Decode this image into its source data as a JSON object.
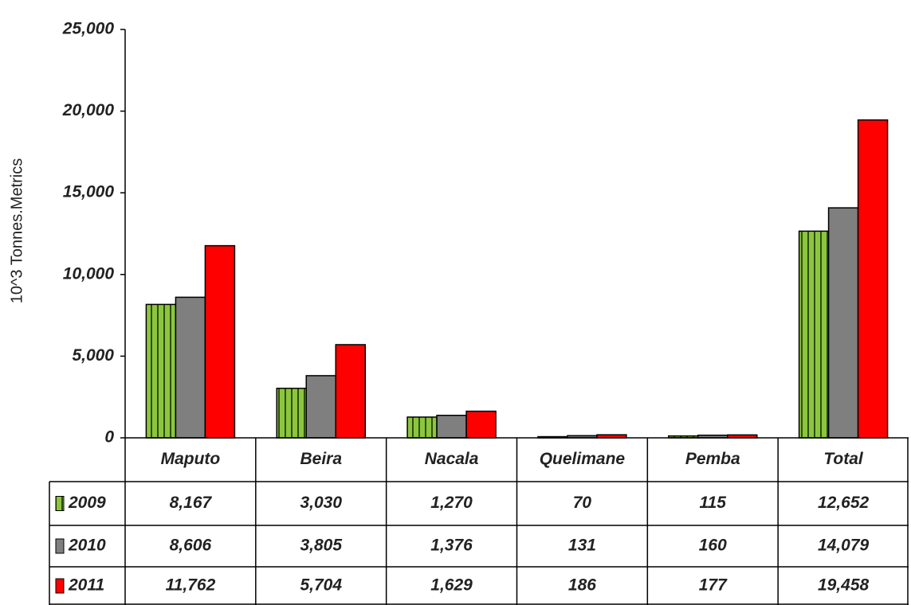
{
  "chart_data": {
    "type": "bar",
    "y_label": "10^3 Tonnes.Metrics",
    "categories": [
      "Maputo",
      "Beira",
      "Nacala",
      "Quelimane",
      "Pemba",
      "Total"
    ],
    "series": [
      {
        "name": "2009",
        "color": "#8cc63e",
        "hatch": true,
        "values": [
          8167,
          3030,
          1270,
          70,
          115,
          12652
        ],
        "value_labels": [
          "8,167",
          "3,030",
          "1,270",
          "70",
          "115",
          "12,652"
        ]
      },
      {
        "name": "2010",
        "color": "#7f7f7f",
        "values": [
          8606,
          3805,
          1376,
          131,
          160,
          14079
        ],
        "value_labels": [
          "8,606",
          "3,805",
          "1,376",
          "131",
          "160",
          "14,079"
        ]
      },
      {
        "name": "2011",
        "color": "#ff0000",
        "values": [
          11762,
          5704,
          1629,
          186,
          177,
          19458
        ],
        "value_labels": [
          "11,762",
          "5,704",
          "1,629",
          "186",
          "177",
          "19,458"
        ]
      }
    ],
    "ylim": [
      0,
      25000
    ],
    "yticks": [
      0,
      {
        "value": 5000,
        "label": "5,000"
      },
      {
        "value": 10000,
        "label": "10,000"
      },
      {
        "value": 15000,
        "label": "15,000"
      },
      {
        "value": 20000,
        "label": "20,000"
      },
      {
        "value": 25000,
        "label": "25,000"
      }
    ]
  }
}
